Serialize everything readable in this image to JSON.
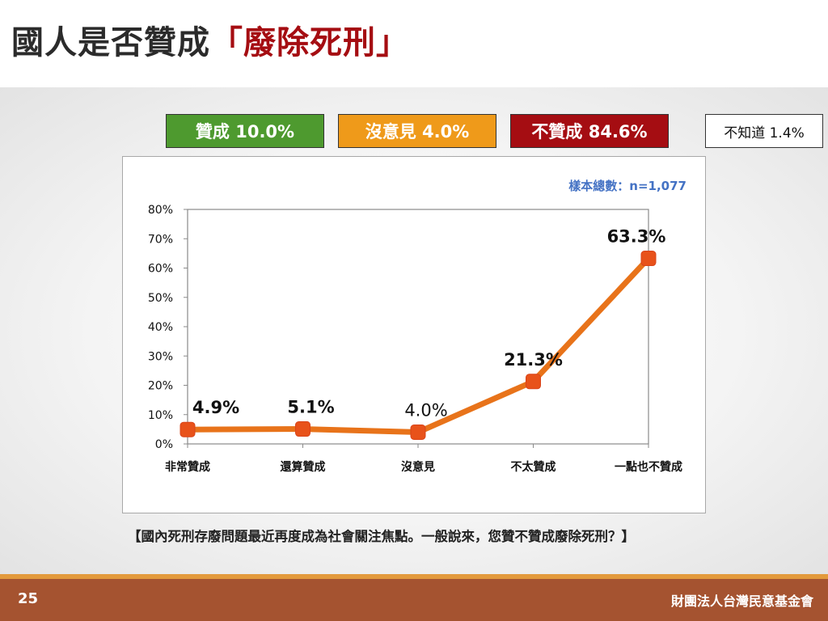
{
  "slide": {
    "title_main": "國人是否贊成",
    "title_accent": "「廢除死刑」",
    "page_number": "25",
    "organization": "財團法人台灣民意基金會"
  },
  "summary": {
    "agree": "贊成 10.0%",
    "neutral": "沒意見 4.0%",
    "disagree": "不贊成 84.6%",
    "unknown": "不知道 1.4%"
  },
  "sample_size": "樣本總數：n=1,077",
  "question": "【國內死刑存廢問題最近再度成為社會關注焦點。一般說來，您贊不贊成廢除死刑？】",
  "colors": {
    "line": "#e8731a",
    "marker": "#e8521a",
    "agree": "#4e9a2f",
    "neutral": "#ef9a1a",
    "disagree": "#a50d12",
    "accent_title": "#a50d12",
    "footer": "#a55330"
  },
  "chart_data": {
    "type": "line",
    "categories": [
      "非常贊成",
      "還算贊成",
      "沒意見",
      "不太贊成",
      "一點也不贊成"
    ],
    "values": [
      4.9,
      5.1,
      4.0,
      21.3,
      63.3
    ],
    "data_labels": [
      "4.9%",
      "5.1%",
      "4.0%",
      "21.3%",
      "63.3%"
    ],
    "y_ticks": [
      "0%",
      "10%",
      "20%",
      "30%",
      "40%",
      "50%",
      "60%",
      "70%",
      "80%"
    ],
    "ylim": [
      0,
      80
    ],
    "grid": false,
    "legend": "none"
  }
}
